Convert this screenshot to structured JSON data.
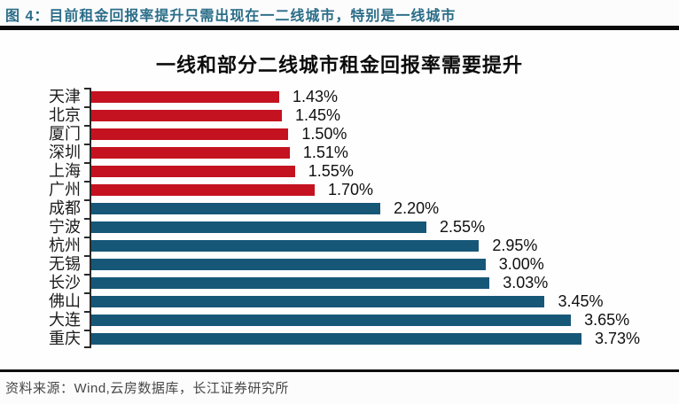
{
  "figure_header": {
    "text": "图 4：目前租金回报率提升只需出现在一二线城市，特别是一线城市"
  },
  "chart_data": {
    "type": "bar",
    "orientation": "horizontal",
    "title": "一线和部分二线城市租金回报率需要提升",
    "categories": [
      "天津",
      "北京",
      "厦门",
      "深圳",
      "上海",
      "广州",
      "成都",
      "宁波",
      "杭州",
      "无锡",
      "长沙",
      "佛山",
      "大连",
      "重庆"
    ],
    "values": [
      1.43,
      1.45,
      1.5,
      1.51,
      1.55,
      1.7,
      2.2,
      2.55,
      2.95,
      3.0,
      3.03,
      3.45,
      3.65,
      3.73
    ],
    "value_labels": [
      "1.43%",
      "1.45%",
      "1.50%",
      "1.51%",
      "1.55%",
      "1.70%",
      "2.20%",
      "2.55%",
      "2.95%",
      "3.00%",
      "3.03%",
      "3.45%",
      "3.65%",
      "3.73%"
    ],
    "groups": [
      "tier1",
      "tier1",
      "tier1",
      "tier1",
      "tier1",
      "tier1",
      "tier2",
      "tier2",
      "tier2",
      "tier2",
      "tier2",
      "tier2",
      "tier2",
      "tier2"
    ],
    "colors": {
      "tier1": "#c41220",
      "tier2": "#165778"
    },
    "xlim": [
      0,
      4.0
    ],
    "grid": false,
    "legend": "none",
    "value_label_position": "right-of-bar"
  },
  "footer": {
    "source": "资料来源：Wind,云房数据库，长江证券研究所"
  }
}
